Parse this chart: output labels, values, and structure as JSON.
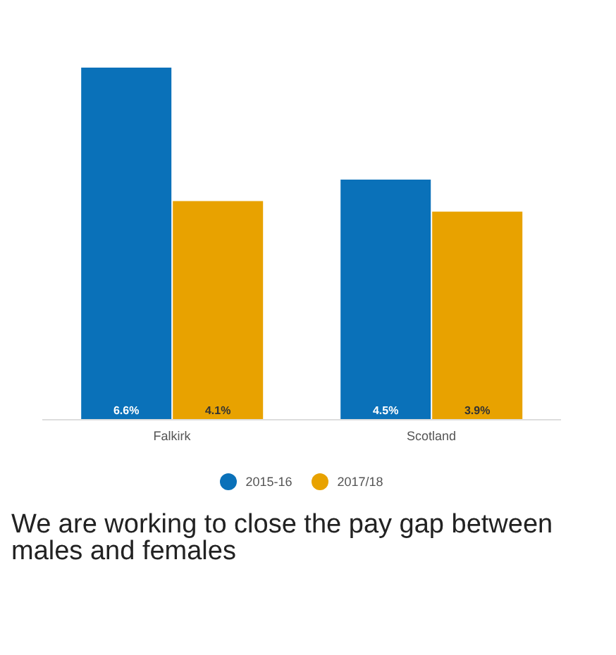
{
  "chart_data": {
    "type": "bar",
    "categories": [
      "Falkirk",
      "Scotland"
    ],
    "series": [
      {
        "name": "2015-16",
        "color": "#0a71b9",
        "values": [
          6.6,
          4.5
        ],
        "value_labels": [
          "6.6%",
          "4.5%"
        ]
      },
      {
        "name": "2017/18",
        "color": "#e8a200",
        "values": [
          4.1,
          3.9
        ],
        "value_labels": [
          "4.1%",
          "3.9%"
        ]
      }
    ],
    "legend": "bottom",
    "annotations": [
      "We are working to close the pay gap between males and females"
    ]
  }
}
